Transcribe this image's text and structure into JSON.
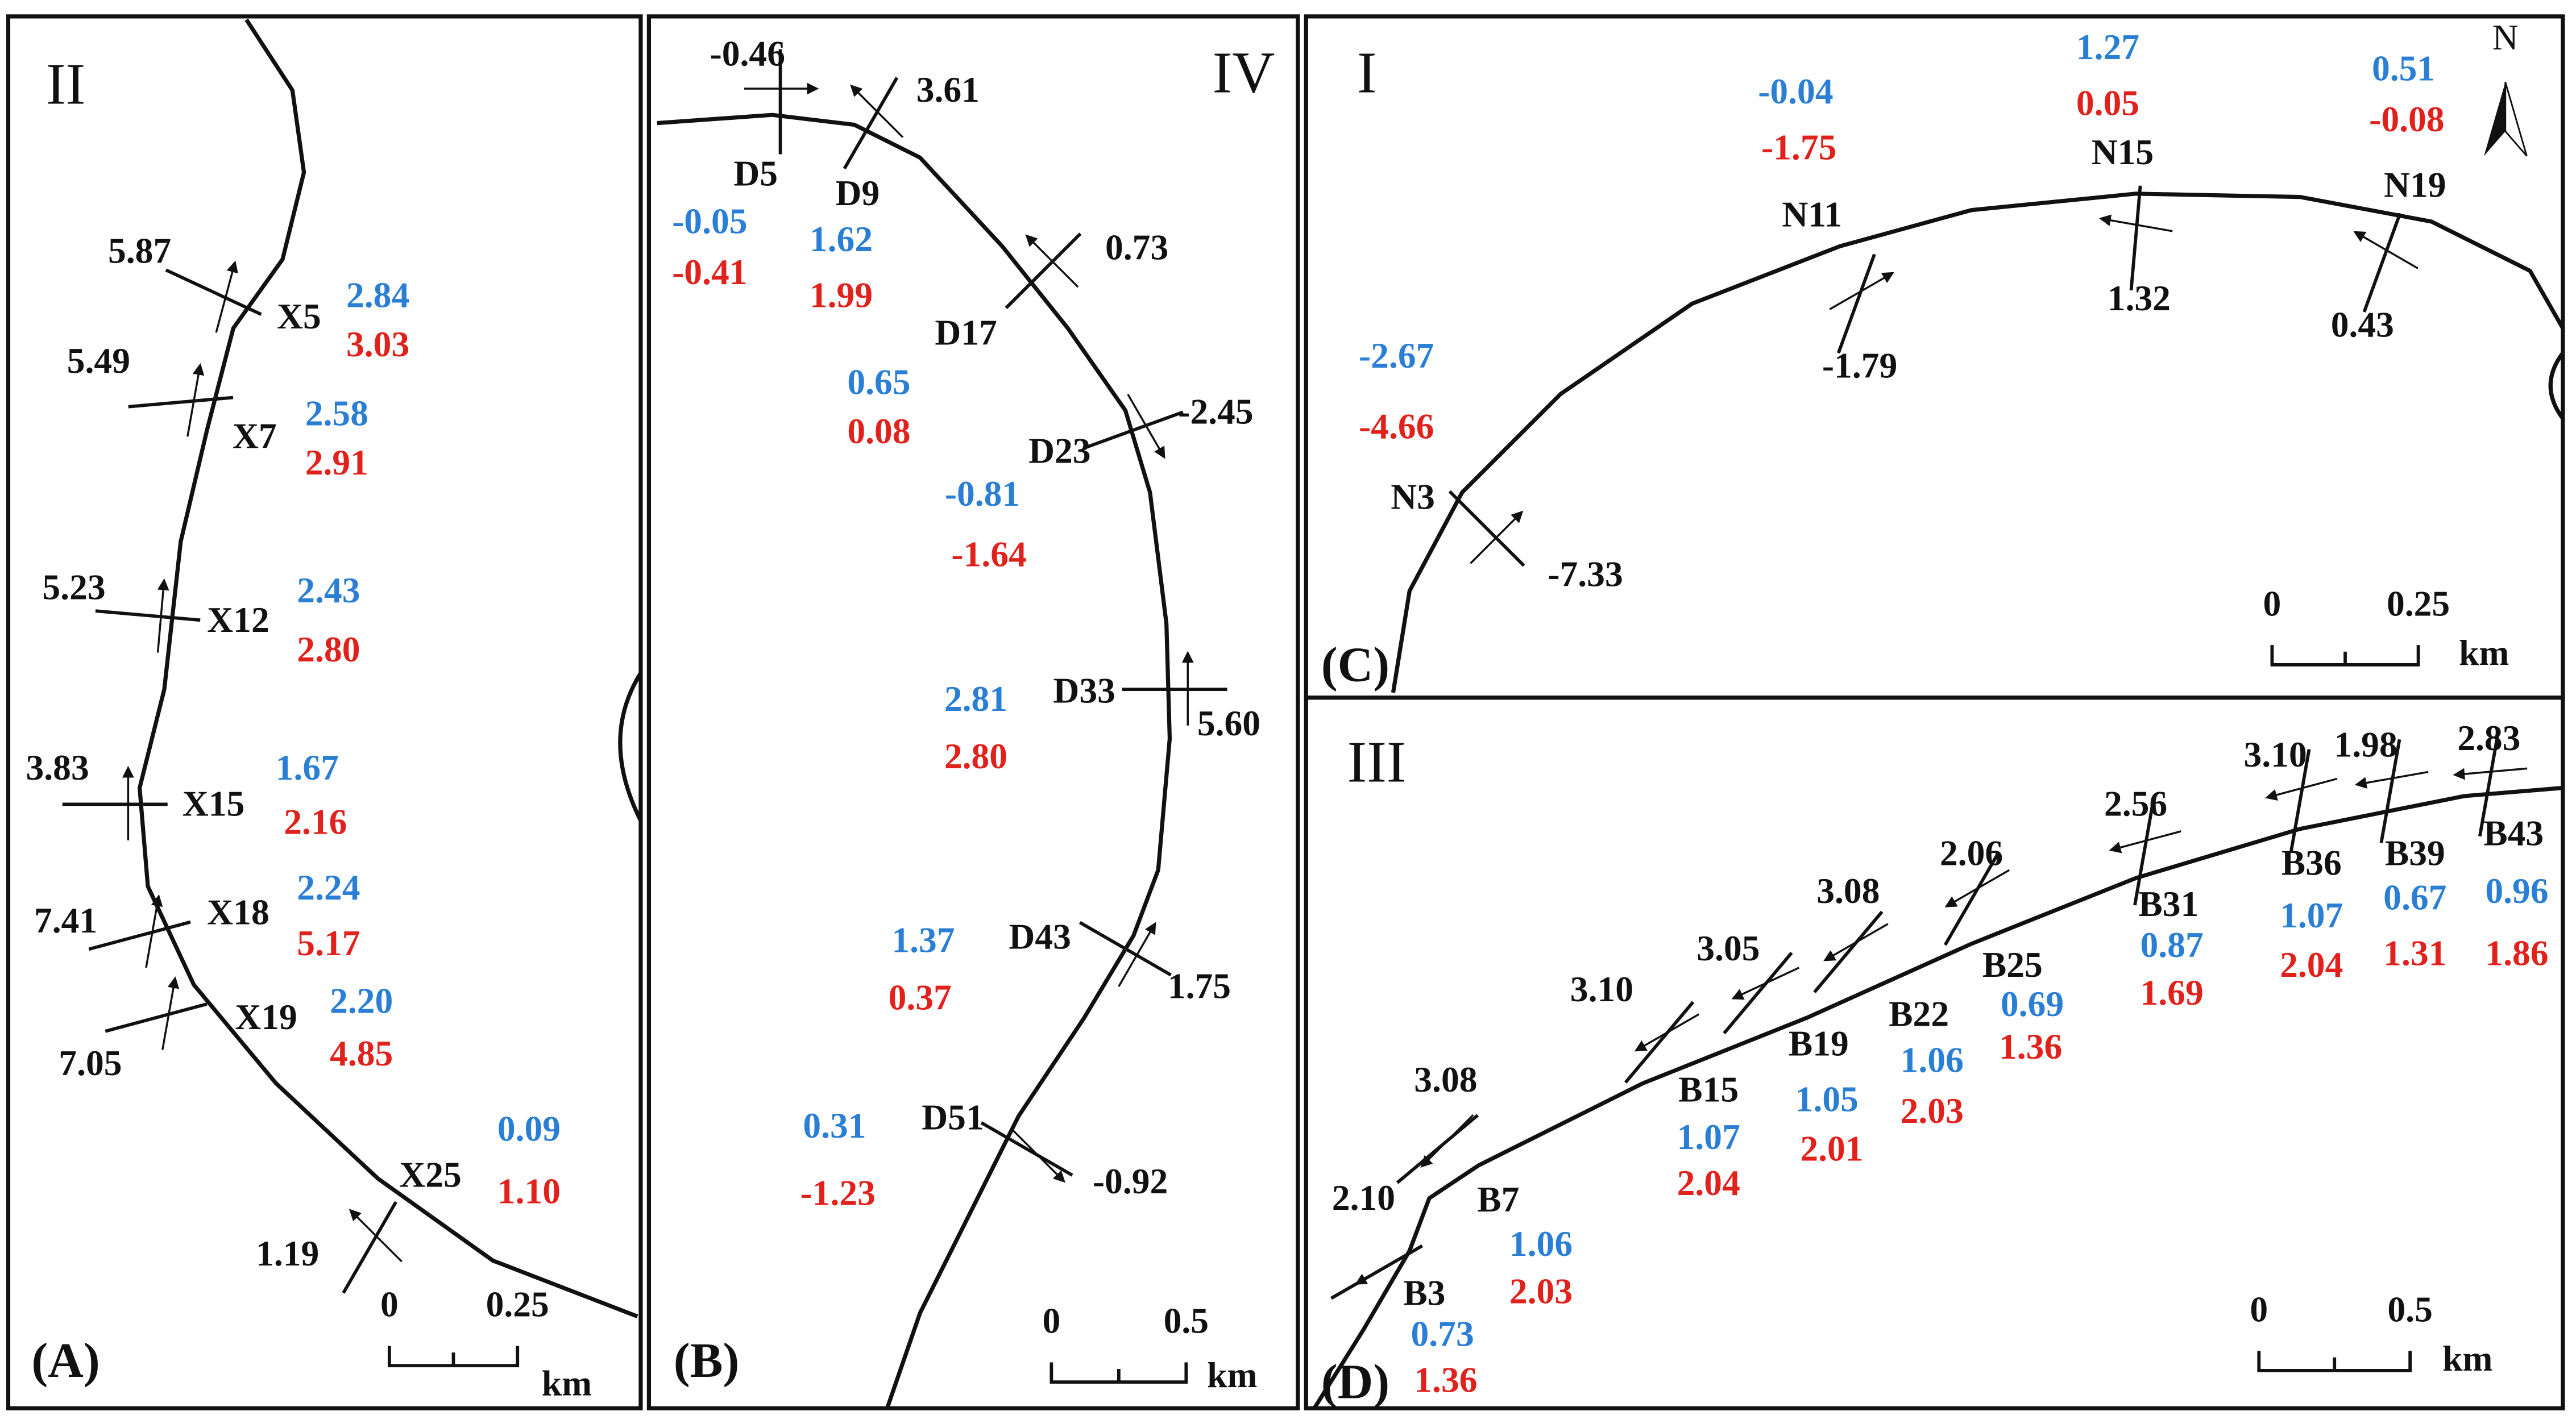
{
  "panels": [
    {
      "letter": "(A)",
      "roman": "II",
      "scale": {
        "ticks": [
          "0",
          "0.25"
        ],
        "unit": "km"
      },
      "transects": [
        {
          "id": "X5",
          "change": "5.87",
          "blue": "2.84",
          "red": "3.03"
        },
        {
          "id": "X7",
          "change": "5.49",
          "blue": "2.58",
          "red": "2.91"
        },
        {
          "id": "X12",
          "change": "5.23",
          "blue": "2.43",
          "red": "2.80"
        },
        {
          "id": "X15",
          "change": "3.83",
          "blue": "1.67",
          "red": "2.16"
        },
        {
          "id": "X18",
          "change": "7.41",
          "blue": "2.24",
          "red": "5.17"
        },
        {
          "id": "X19",
          "change": "7.05",
          "blue": "2.20",
          "red": "4.85"
        },
        {
          "id": "X25",
          "change": "1.19",
          "blue": "0.09",
          "red": "1.10"
        }
      ]
    },
    {
      "letter": "(B)",
      "roman": "IV",
      "scale": {
        "ticks": [
          "0",
          "0.5"
        ],
        "unit": "km"
      },
      "transects": [
        {
          "id": "D5",
          "change": "-0.46",
          "blue": "-0.05",
          "red": "-0.41"
        },
        {
          "id": "D9",
          "change": "3.61",
          "blue": "1.62",
          "red": "1.99"
        },
        {
          "id": "D17",
          "change": "0.73",
          "blue": "0.65",
          "red": "0.08"
        },
        {
          "id": "D23",
          "change": "-2.45",
          "blue": "-0.81",
          "red": "-1.64"
        },
        {
          "id": "D33",
          "change": "5.60",
          "blue": "2.81",
          "red": "2.80"
        },
        {
          "id": "D43",
          "change": "1.75",
          "blue": "1.37",
          "red": "0.37"
        },
        {
          "id": "D51",
          "change": "-0.92",
          "blue": "0.31",
          "red": "-1.23"
        }
      ]
    },
    {
      "letter": "(C)",
      "roman": "I",
      "north": "N",
      "scale": {
        "ticks": [
          "0",
          "0.25"
        ],
        "unit": "km"
      },
      "transects": [
        {
          "id": "N3",
          "change": "-7.33",
          "blue": "-2.67",
          "red": "-4.66"
        },
        {
          "id": "N11",
          "change": "-1.79",
          "blue": "-0.04",
          "red": "-1.75"
        },
        {
          "id": "N15",
          "change": "1.32",
          "blue": "1.27",
          "red": "0.05"
        },
        {
          "id": "N19",
          "change": "0.43",
          "blue": "0.51",
          "red": "-0.08"
        }
      ]
    },
    {
      "letter": "(D)",
      "roman": "III",
      "scale": {
        "ticks": [
          "0",
          "0.5"
        ],
        "unit": "km"
      },
      "transects": [
        {
          "id": "B3",
          "change": "2.10",
          "blue": "0.73",
          "red": "1.36"
        },
        {
          "id": "B7",
          "change": "3.08",
          "blue": "1.06",
          "red": "2.03"
        },
        {
          "id": "B15",
          "change": "3.10",
          "blue": "1.07",
          "red": "2.04"
        },
        {
          "id": "B19",
          "change": "3.05",
          "blue": "1.05",
          "red": "2.01"
        },
        {
          "id": "B22",
          "change": "3.08",
          "blue": "1.06",
          "red": "2.03"
        },
        {
          "id": "B25",
          "change": "2.06",
          "blue": "0.69",
          "red": "1.36"
        },
        {
          "id": "B31",
          "change": "2.56",
          "blue": "0.87",
          "red": "1.69"
        },
        {
          "id": "B36",
          "change": "3.10",
          "blue": "1.07",
          "red": "2.04"
        },
        {
          "id": "B39",
          "change": "1.98",
          "blue": "0.67",
          "red": "1.31"
        },
        {
          "id": "B43",
          "change": "2.83",
          "blue": "0.96",
          "red": "1.86"
        }
      ]
    }
  ]
}
